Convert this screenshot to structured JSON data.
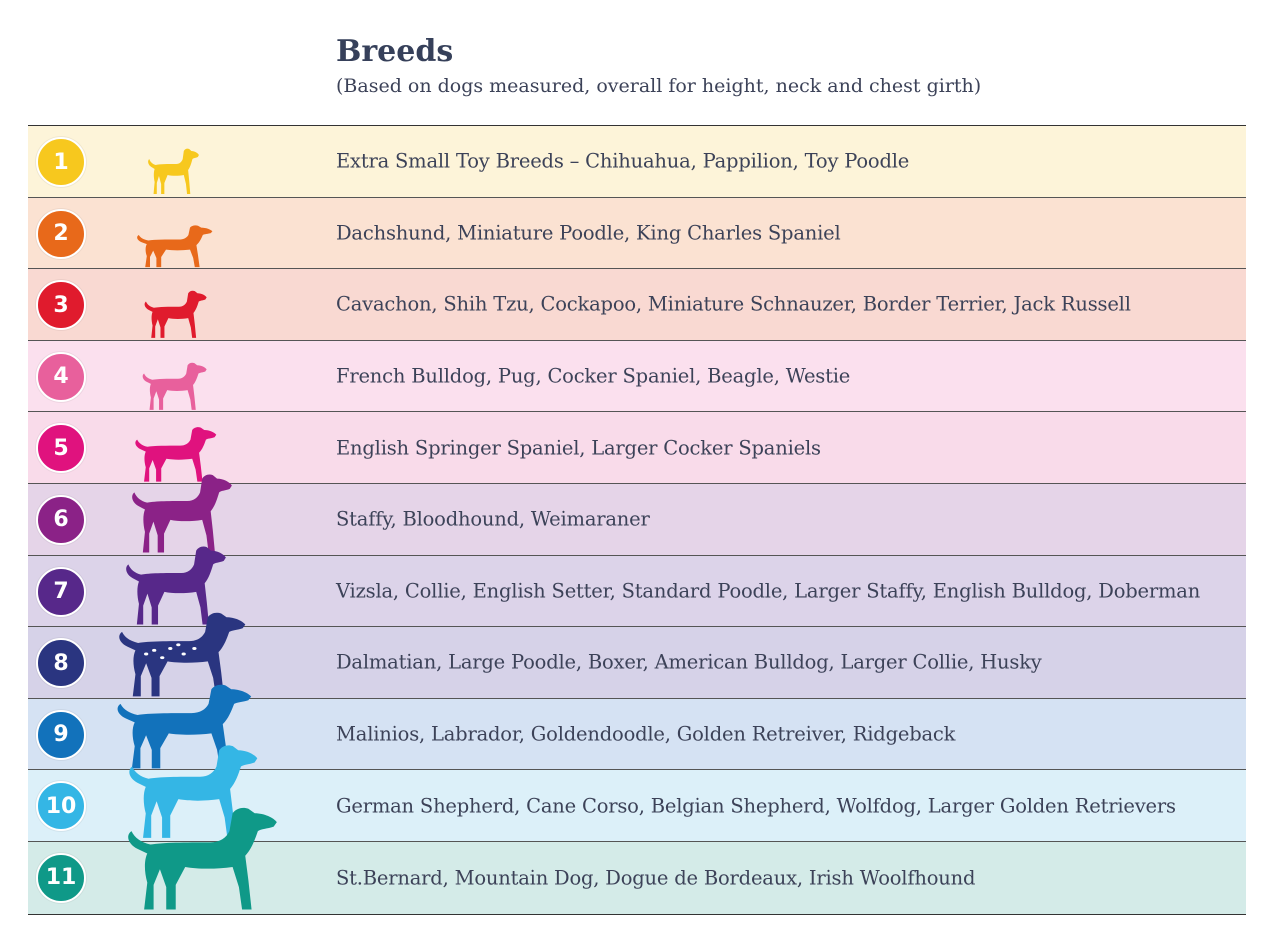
{
  "header": {
    "title": "Breeds",
    "subtitle": "(Based on dogs measured, overall for height, neck and chest girth)"
  },
  "rows": [
    {
      "num": "1",
      "breeds": "Extra Small Toy Breeds – Chihuahua, Pappilion, Toy Poodle",
      "bg": "#fdf4d9",
      "accent": "#f7c81e",
      "icon": "chihuahua-icon"
    },
    {
      "num": "2",
      "breeds": "Dachshund, Miniature Poodle, King Charles Spaniel",
      "bg": "#fbe2d2",
      "accent": "#e8691a",
      "icon": "dachshund-icon"
    },
    {
      "num": "3",
      "breeds": "Cavachon, Shih Tzu, Cockapoo, Miniature Schnauzer, Border Terrier, Jack Russell",
      "bg": "#f9d9d2",
      "accent": "#e01b2d",
      "icon": "terrier-icon"
    },
    {
      "num": "4",
      "breeds": "French Bulldog, Pug, Cocker Spaniel, Beagle, Westie",
      "bg": "#fbe0ee",
      "accent": "#e8609c",
      "icon": "pug-icon"
    },
    {
      "num": "5",
      "breeds": "English Springer Spaniel, Larger Cocker Spaniels",
      "bg": "#f9dbea",
      "accent": "#e0127e",
      "icon": "spaniel-icon"
    },
    {
      "num": "6",
      "breeds": "Staffy, Bloodhound, Weimaraner",
      "bg": "#e5d4e8",
      "accent": "#8b2287",
      "icon": "weimaraner-icon"
    },
    {
      "num": "7",
      "breeds": "Vizsla, Collie, English Setter, Standard Poodle, Larger Staffy, English Bulldog, Doberman",
      "bg": "#dcd3e9",
      "accent": "#57288a",
      "icon": "vizsla-icon"
    },
    {
      "num": "8",
      "breeds": "Dalmatian, Large Poodle, Boxer, American Bulldog, Larger Collie, Husky",
      "bg": "#d6d2e8",
      "accent": "#2a3580",
      "icon": "dalmatian-icon"
    },
    {
      "num": "9",
      "breeds": "Malinios, Labrador, Goldendoodle, Golden Retreiver, Ridgeback",
      "bg": "#d5e2f3",
      "accent": "#1272bb",
      "icon": "labrador-icon"
    },
    {
      "num": "10",
      "breeds": "German Shepherd, Cane Corso, Belgian Shepherd, Wolfdog, Larger Golden Retrievers",
      "bg": "#dcf0f9",
      "accent": "#34b6e5",
      "icon": "shepherd-icon"
    },
    {
      "num": "11",
      "breeds": "St.Bernard, Mountain Dog, Dogue de Bordeaux, Irish Woolfhound",
      "bg": "#d4ebe8",
      "accent": "#0f9988",
      "icon": "st-bernard-icon"
    }
  ]
}
